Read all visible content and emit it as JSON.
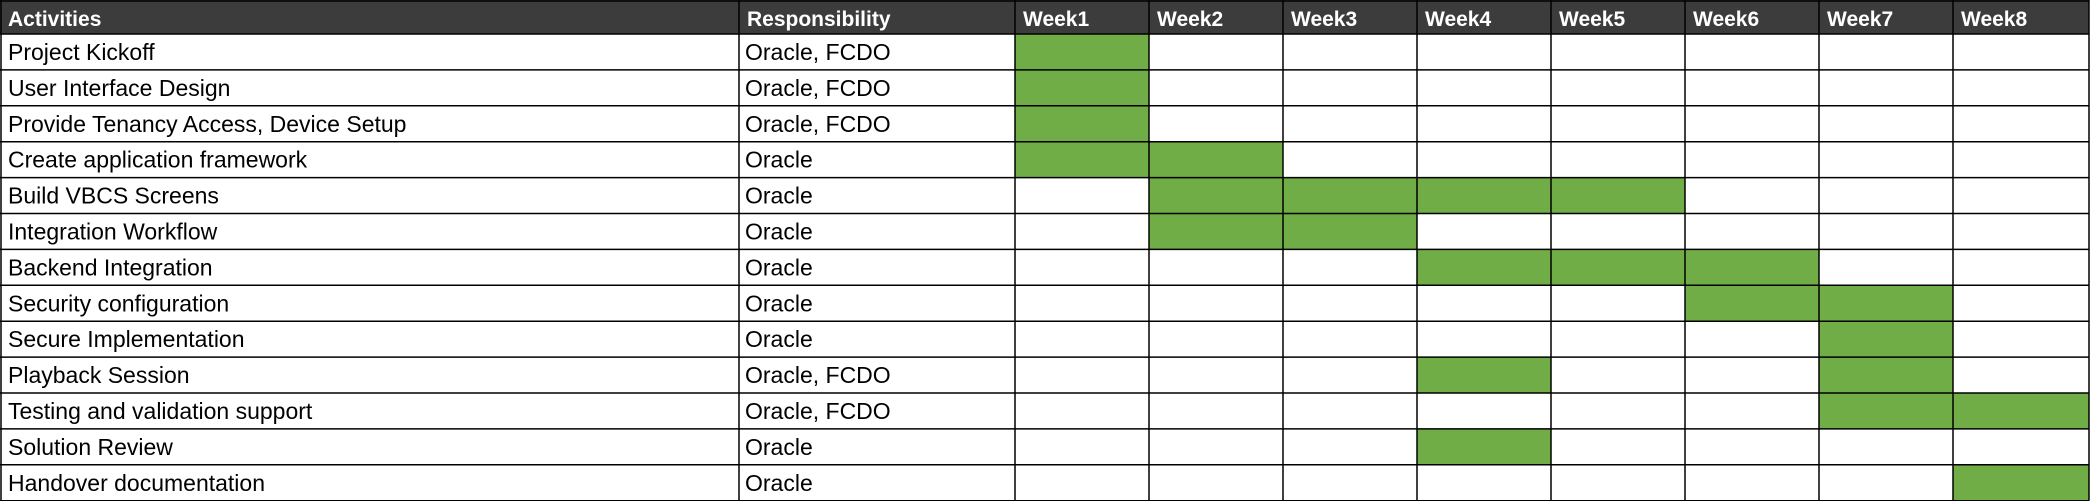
{
  "chart_data": {
    "type": "table",
    "columns": {
      "activities": "Activities",
      "responsibility": "Responsibility",
      "weeks": [
        "Week1",
        "Week2",
        "Week3",
        "Week4",
        "Week5",
        "Week6",
        "Week7",
        "Week8"
      ]
    },
    "rows": [
      {
        "activity": "Project Kickoff",
        "responsibility": "Oracle, FCDO",
        "weeks": [
          1
        ]
      },
      {
        "activity": "User Interface Design",
        "responsibility": "Oracle, FCDO",
        "weeks": [
          1
        ]
      },
      {
        "activity": "Provide Tenancy Access, Device Setup",
        "responsibility": "Oracle, FCDO",
        "weeks": [
          1
        ]
      },
      {
        "activity": "Create application framework",
        "responsibility": "Oracle",
        "weeks": [
          1,
          2
        ]
      },
      {
        "activity": "Build VBCS Screens",
        "responsibility": "Oracle",
        "weeks": [
          2,
          3,
          4,
          5
        ]
      },
      {
        "activity": "Integration Workflow",
        "responsibility": "Oracle",
        "weeks": [
          2,
          3
        ]
      },
      {
        "activity": "Backend Integration",
        "responsibility": "Oracle",
        "weeks": [
          4,
          5,
          6
        ]
      },
      {
        "activity": "Security configuration",
        "responsibility": "Oracle",
        "weeks": [
          6,
          7
        ]
      },
      {
        "activity": "Secure Implementation",
        "responsibility": "Oracle",
        "weeks": [
          7
        ]
      },
      {
        "activity": "Playback Session",
        "responsibility": "Oracle, FCDO",
        "weeks": [
          4,
          7
        ]
      },
      {
        "activity": "Testing and validation support",
        "responsibility": "Oracle, FCDO",
        "weeks": [
          7,
          8
        ]
      },
      {
        "activity": "Solution Review",
        "responsibility": "Oracle",
        "weeks": [
          4
        ]
      },
      {
        "activity": "Handover documentation",
        "responsibility": "Oracle",
        "weeks": [
          8
        ]
      }
    ],
    "colors": {
      "header_bg": "#3c3c3c",
      "header_text": "#ffffff",
      "bar": "#70ad47",
      "grid": "#000000"
    }
  }
}
